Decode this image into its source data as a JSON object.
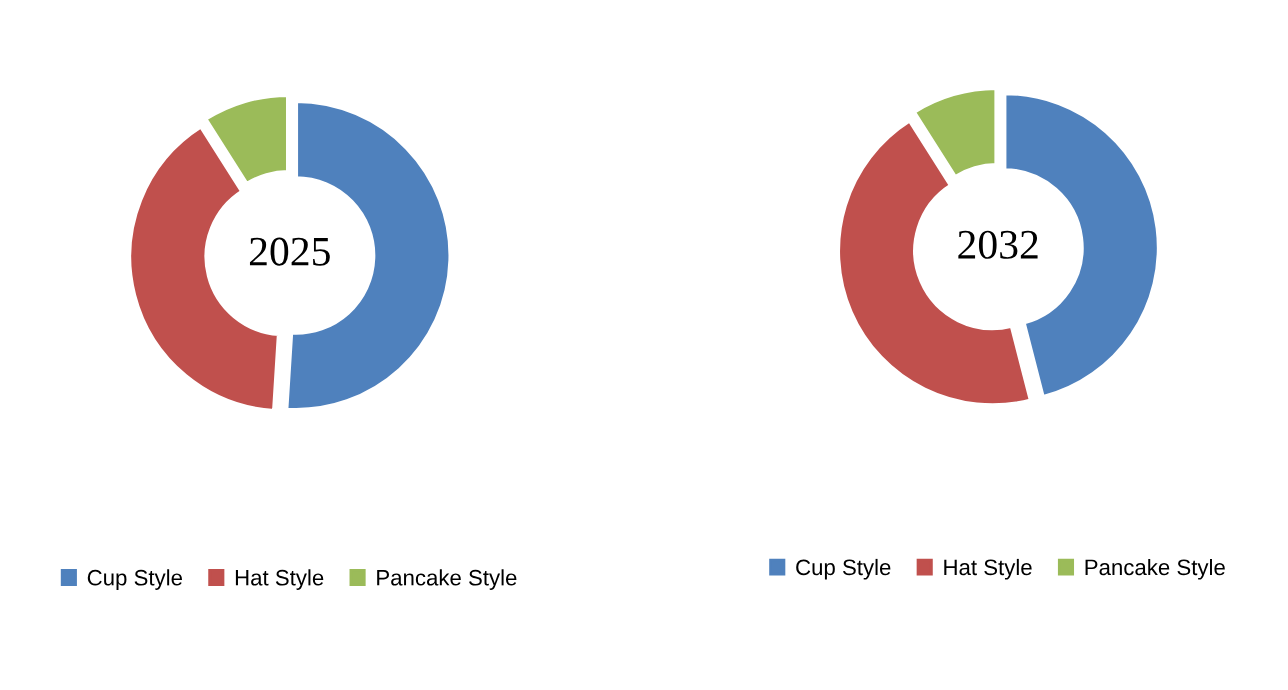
{
  "chart_data": [
    {
      "type": "donut",
      "title": "2025",
      "categories": [
        "Cup Style",
        "Hat Style",
        "Pancake Style"
      ],
      "values": [
        51,
        40,
        9
      ],
      "colors": [
        "#4f81bd",
        "#c0504d",
        "#9bbb59"
      ],
      "legend": "bottom"
    },
    {
      "type": "donut",
      "title": "2032",
      "categories": [
        "Cup Style",
        "Hat Style",
        "Pancake Style"
      ],
      "values": [
        46,
        45,
        9
      ],
      "colors": [
        "#4f81bd",
        "#c0504d",
        "#9bbb59"
      ],
      "legend": "bottom"
    }
  ]
}
